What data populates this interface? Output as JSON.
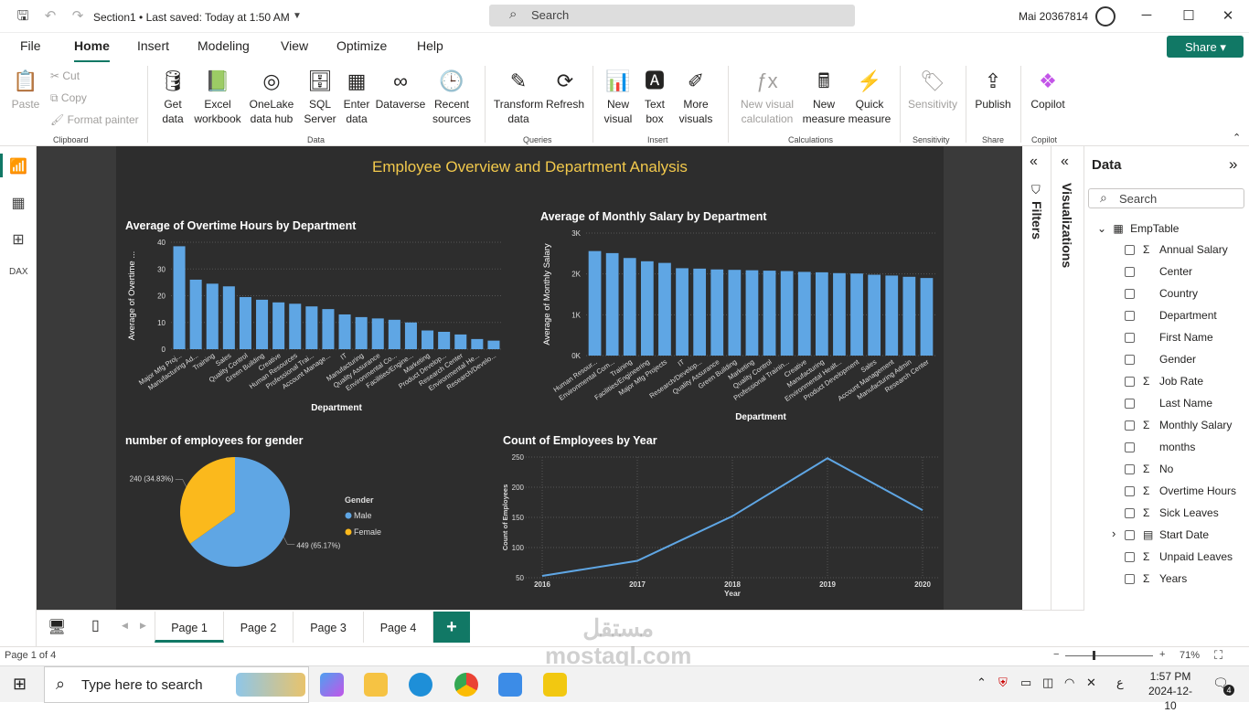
{
  "titlebar": {
    "doc_title": "Section1  •  Last saved: Today at 1:50 AM",
    "search": "Search",
    "user": "Mai 20367814"
  },
  "menu": [
    "File",
    "Home",
    "Insert",
    "Modeling",
    "View",
    "Optimize",
    "Help"
  ],
  "share_label": "Share",
  "ribbon": {
    "clipboard": {
      "paste": "Paste",
      "cut": "Cut",
      "copy": "Copy",
      "format_painter": "Format painter",
      "label": "Clipboard"
    },
    "data": {
      "get_data": "Get data",
      "excel": "Excel workbook",
      "onelake": "OneLake data hub",
      "sql": "SQL Server",
      "enter": "Enter data",
      "dataverse": "Dataverse",
      "recent": "Recent sources",
      "label": "Data"
    },
    "queries": {
      "transform": "Transform data",
      "refresh": "Refresh",
      "label": "Queries"
    },
    "insert": {
      "new_visual": "New visual",
      "text_box": "Text box",
      "more_visuals": "More visuals",
      "label": "Insert"
    },
    "calculations": {
      "new_visual_calc": "New visual calculation",
      "new_measure": "New measure",
      "quick_measure": "Quick measure",
      "label": "Calculations"
    },
    "sensitivity": {
      "btn": "Sensitivity",
      "label": "Sensitivity"
    },
    "share": {
      "publish": "Publish",
      "label": "Share"
    },
    "copilot": {
      "btn": "Copilot",
      "label": "Copilot"
    }
  },
  "report": {
    "title": "Employee Overview and Department Analysis",
    "overtime_title": "Average of Overtime Hours by Department",
    "salary_title": "Average of Monthly Salary by Department",
    "gender_title": "number of employees for gender",
    "year_title": "Count of Employees by Year"
  },
  "chart_data": [
    {
      "type": "bar",
      "title": "Average of Overtime Hours by Department",
      "xlabel": "Department",
      "ylabel": "Average of Overtime ...",
      "ylim": [
        0,
        40
      ],
      "yticks": [
        0,
        10,
        20,
        30,
        40
      ],
      "categories": [
        "Major Mfg Proj...",
        "Manufacturing Ad...",
        "Training",
        "Sales",
        "Quality Control",
        "Green Building",
        "Creative",
        "Human Resources",
        "Professional Trai...",
        "Account Manage...",
        "IT",
        "Manufacturing",
        "Quality Assurance",
        "Environmental Co...",
        "Facilities/Engine...",
        "Marketing",
        "Product Develop...",
        "Research Center",
        "Environmental He...",
        "Research/Develo..."
      ],
      "values": [
        38.5,
        26,
        24.5,
        23.5,
        19.5,
        18.5,
        17.5,
        17,
        16,
        15,
        13,
        12,
        11.5,
        11,
        10,
        7,
        6.5,
        5.5,
        3.8,
        3.2
      ]
    },
    {
      "type": "bar",
      "title": "Average of Monthly Salary by Department",
      "xlabel": "Department",
      "ylabel": "Average of Monthly Salary",
      "ylim": [
        0,
        3000
      ],
      "yticks": [
        "0K",
        "1K",
        "2K",
        "3K"
      ],
      "categories": [
        "Human Resour...",
        "Environmental Com...",
        "Training",
        "Facilities/Engineering",
        "Major Mfg Projects",
        "IT",
        "Research/Develop...",
        "Quality Assurance",
        "Green Building",
        "Marketing",
        "Quality Control",
        "Professional Trainin...",
        "Creative",
        "Manufacturing",
        "Environmental Healt...",
        "Product Development",
        "Sales",
        "Account Management",
        "Manufacturing Admin",
        "Research Center"
      ],
      "values": [
        2560,
        2510,
        2390,
        2310,
        2270,
        2140,
        2130,
        2110,
        2100,
        2090,
        2080,
        2070,
        2050,
        2040,
        2020,
        2010,
        1980,
        1960,
        1930,
        1900
      ]
    },
    {
      "type": "pie",
      "title": "number of employees for gender",
      "legend_title": "Gender",
      "slices": [
        {
          "name": "Male",
          "value": 449,
          "label": "449 (65.17%)",
          "color": "#5fa6e4"
        },
        {
          "name": "Female",
          "value": 240,
          "label": "240 (34.83%)",
          "color": "#fbb91c"
        }
      ]
    },
    {
      "type": "line",
      "title": "Count of Employees by Year",
      "xlabel": "Year",
      "ylabel": "Count of Employees",
      "x": [
        "2016",
        "2017",
        "2018",
        "2019",
        "2020"
      ],
      "values": [
        53,
        78,
        152,
        248,
        162
      ],
      "ylim": [
        50,
        250
      ],
      "yticks": [
        50,
        100,
        150,
        200,
        250
      ]
    }
  ],
  "panes": {
    "filters": "Filters",
    "visualizations": "Visualizations",
    "data": "Data",
    "data_search": "Search",
    "table": "EmpTable"
  },
  "fields": [
    {
      "name": "Annual Salary",
      "sigma": true
    },
    {
      "name": "Center",
      "sigma": false
    },
    {
      "name": "Country",
      "sigma": false
    },
    {
      "name": "Department",
      "sigma": false
    },
    {
      "name": "First Name",
      "sigma": false
    },
    {
      "name": "Gender",
      "sigma": false
    },
    {
      "name": "Job Rate",
      "sigma": true
    },
    {
      "name": "Last Name",
      "sigma": false
    },
    {
      "name": "Monthly Salary",
      "sigma": true
    },
    {
      "name": "months",
      "sigma": false
    },
    {
      "name": "No",
      "sigma": true
    },
    {
      "name": "Overtime Hours",
      "sigma": true
    },
    {
      "name": "Sick Leaves",
      "sigma": true
    },
    {
      "name": "Start Date",
      "sigma": false
    },
    {
      "name": "Unpaid Leaves",
      "sigma": true
    },
    {
      "name": "Years",
      "sigma": true
    }
  ],
  "pages": [
    "Page 1",
    "Page 2",
    "Page 3",
    "Page 4"
  ],
  "status": {
    "page": "Page 1 of 4",
    "zoom": "71%"
  },
  "taskbar": {
    "search": "Type here to search",
    "time": "1:57 PM",
    "date": "2024-12-10",
    "lang": "ع",
    "notif": "4"
  },
  "watermark": "مستقل\nmostaql.com",
  "colors": {
    "accent": "#117865",
    "bar": "#5fa6e4",
    "report_bg": "#2d2d2d",
    "title": "#f2c94c"
  }
}
